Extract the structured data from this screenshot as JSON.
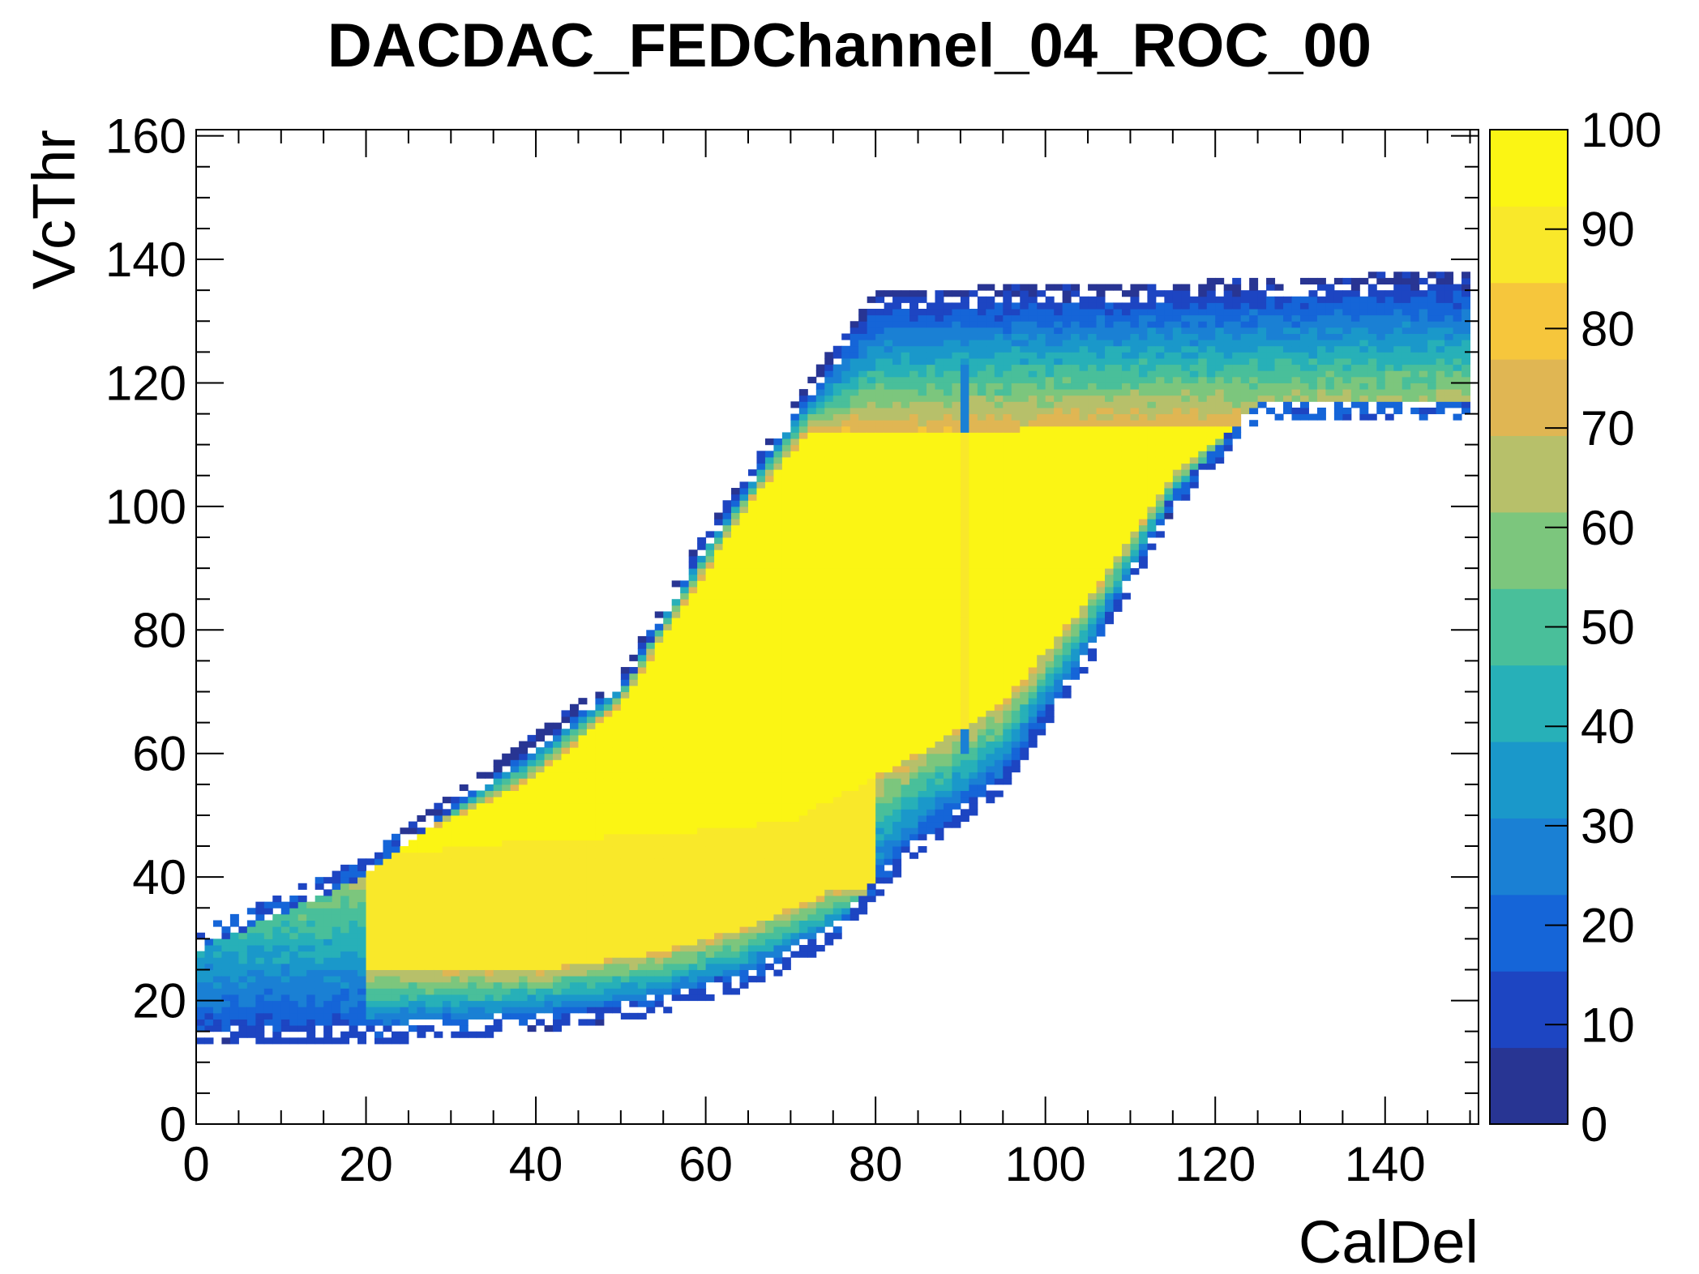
{
  "chart_data": {
    "type": "heatmap",
    "title": "DACDAC_FEDChannel_04_ROC_00",
    "xlabel": "CalDel",
    "ylabel": "VcThr",
    "xlim": [
      0,
      151
    ],
    "ylim": [
      0,
      161
    ],
    "zlim": [
      0,
      100
    ],
    "x_ticks": [
      0,
      20,
      40,
      60,
      80,
      100,
      120,
      140
    ],
    "y_ticks": [
      0,
      20,
      40,
      60,
      80,
      100,
      120,
      140,
      160
    ],
    "z_ticks": [
      0,
      10,
      20,
      30,
      40,
      50,
      60,
      70,
      80,
      90,
      100
    ],
    "palette": [
      "#283593",
      "#1d45c2",
      "#1565d8",
      "#1a80d4",
      "#1a98ca",
      "#27b0b8",
      "#49bf9a",
      "#7cc67d",
      "#b7c06a",
      "#e0b653",
      "#f6c63c",
      "#f9e82a",
      "#fbf514"
    ],
    "features": {
      "band_lower_edge": [
        [
          0,
          14
        ],
        [
          20,
          14
        ],
        [
          40,
          16
        ],
        [
          55,
          19
        ],
        [
          65,
          23
        ],
        [
          75,
          30
        ],
        [
          85,
          45
        ],
        [
          95,
          55
        ],
        [
          105,
          75
        ],
        [
          115,
          100
        ],
        [
          125,
          115
        ],
        [
          150,
          115
        ]
      ],
      "band_upper_edge": [
        [
          0,
          30
        ],
        [
          20,
          42
        ],
        [
          30,
          52
        ],
        [
          40,
          62
        ],
        [
          50,
          72
        ],
        [
          60,
          95
        ],
        [
          70,
          115
        ],
        [
          80,
          134
        ],
        [
          150,
          137
        ]
      ],
      "yellow_core_lower": [
        [
          25,
          44
        ],
        [
          40,
          46
        ],
        [
          55,
          47
        ],
        [
          70,
          49
        ],
        [
          85,
          60
        ],
        [
          95,
          68
        ],
        [
          105,
          85
        ],
        [
          115,
          105
        ],
        [
          122,
          113
        ]
      ],
      "yellow_core_upper": [
        [
          25,
          46
        ],
        [
          40,
          56
        ],
        [
          50,
          68
        ],
        [
          58,
          85
        ],
        [
          65,
          100
        ],
        [
          72,
          112
        ],
        [
          122,
          113
        ]
      ],
      "orange_region_lower": [
        [
          20,
          25
        ],
        [
          40,
          25
        ],
        [
          55,
          28
        ],
        [
          65,
          32
        ],
        [
          75,
          38
        ]
      ],
      "vertical_stripe_x": 90.5,
      "vertical_stripe_range": [
        60,
        122
      ]
    }
  }
}
